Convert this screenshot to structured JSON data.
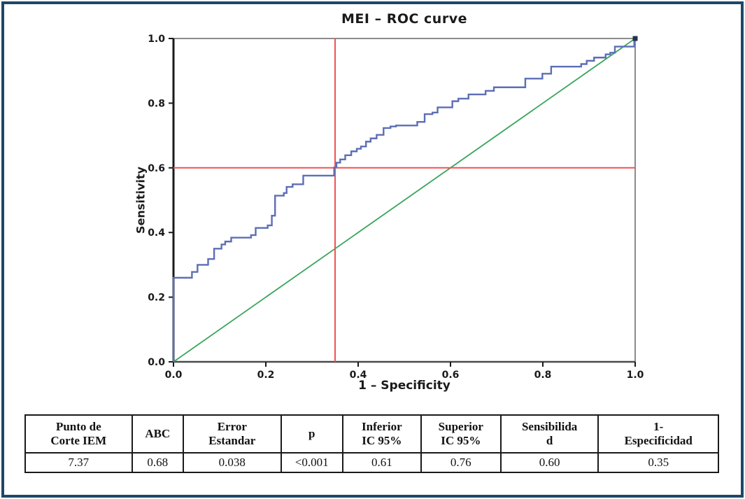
{
  "figure": {
    "border_color": "#1d4868",
    "background": "#ffffff"
  },
  "chart_data": {
    "type": "line",
    "title": "MEI – ROC curve",
    "xlabel": "1 – Specificity",
    "ylabel": "Sensitivity",
    "xlim": [
      0.0,
      1.0
    ],
    "ylim": [
      0.0,
      1.0
    ],
    "xticks": [
      0.0,
      0.2,
      0.4,
      0.6,
      0.8,
      1.0
    ],
    "yticks": [
      0.0,
      0.2,
      0.4,
      0.6,
      0.8,
      1.0
    ],
    "grid": false,
    "legend": "none",
    "frame_colors": {
      "top": "#8c8c8c",
      "right": "#8c8c8c",
      "bottom": "#4a4a4a",
      "left": "#1a1a1a"
    },
    "series": [
      {
        "name": "MEI ROC curve",
        "type": "step",
        "color": "#5c6eb5",
        "points": [
          [
            0.0,
            0.0
          ],
          [
            0.0,
            0.26
          ],
          [
            0.04,
            0.26
          ],
          [
            0.04,
            0.278
          ],
          [
            0.052,
            0.278
          ],
          [
            0.052,
            0.3
          ],
          [
            0.075,
            0.3
          ],
          [
            0.075,
            0.318
          ],
          [
            0.088,
            0.318
          ],
          [
            0.088,
            0.35
          ],
          [
            0.104,
            0.35
          ],
          [
            0.104,
            0.363
          ],
          [
            0.112,
            0.363
          ],
          [
            0.112,
            0.372
          ],
          [
            0.125,
            0.372
          ],
          [
            0.125,
            0.384
          ],
          [
            0.168,
            0.384
          ],
          [
            0.168,
            0.392
          ],
          [
            0.178,
            0.392
          ],
          [
            0.178,
            0.414
          ],
          [
            0.204,
            0.414
          ],
          [
            0.204,
            0.422
          ],
          [
            0.213,
            0.422
          ],
          [
            0.213,
            0.452
          ],
          [
            0.22,
            0.452
          ],
          [
            0.22,
            0.514
          ],
          [
            0.239,
            0.514
          ],
          [
            0.239,
            0.522
          ],
          [
            0.245,
            0.522
          ],
          [
            0.245,
            0.541
          ],
          [
            0.258,
            0.541
          ],
          [
            0.258,
            0.549
          ],
          [
            0.281,
            0.549
          ],
          [
            0.281,
            0.576
          ],
          [
            0.348,
            0.576
          ],
          [
            0.348,
            0.601
          ],
          [
            0.353,
            0.601
          ],
          [
            0.353,
            0.616
          ],
          [
            0.361,
            0.616
          ],
          [
            0.361,
            0.626
          ],
          [
            0.372,
            0.626
          ],
          [
            0.372,
            0.639
          ],
          [
            0.385,
            0.639
          ],
          [
            0.385,
            0.651
          ],
          [
            0.397,
            0.651
          ],
          [
            0.397,
            0.659
          ],
          [
            0.406,
            0.659
          ],
          [
            0.406,
            0.666
          ],
          [
            0.417,
            0.666
          ],
          [
            0.417,
            0.681
          ],
          [
            0.427,
            0.681
          ],
          [
            0.427,
            0.691
          ],
          [
            0.44,
            0.691
          ],
          [
            0.44,
            0.702
          ],
          [
            0.455,
            0.702
          ],
          [
            0.455,
            0.723
          ],
          [
            0.47,
            0.723
          ],
          [
            0.47,
            0.728
          ],
          [
            0.482,
            0.728
          ],
          [
            0.482,
            0.731
          ],
          [
            0.528,
            0.731
          ],
          [
            0.528,
            0.742
          ],
          [
            0.544,
            0.742
          ],
          [
            0.544,
            0.766
          ],
          [
            0.561,
            0.766
          ],
          [
            0.561,
            0.771
          ],
          [
            0.572,
            0.771
          ],
          [
            0.572,
            0.787
          ],
          [
            0.604,
            0.787
          ],
          [
            0.604,
            0.806
          ],
          [
            0.617,
            0.806
          ],
          [
            0.617,
            0.814
          ],
          [
            0.639,
            0.814
          ],
          [
            0.639,
            0.827
          ],
          [
            0.676,
            0.827
          ],
          [
            0.676,
            0.838
          ],
          [
            0.694,
            0.838
          ],
          [
            0.694,
            0.849
          ],
          [
            0.762,
            0.849
          ],
          [
            0.762,
            0.876
          ],
          [
            0.799,
            0.876
          ],
          [
            0.799,
            0.891
          ],
          [
            0.818,
            0.891
          ],
          [
            0.818,
            0.913
          ],
          [
            0.883,
            0.913
          ],
          [
            0.883,
            0.921
          ],
          [
            0.895,
            0.921
          ],
          [
            0.895,
            0.931
          ],
          [
            0.911,
            0.931
          ],
          [
            0.911,
            0.941
          ],
          [
            0.936,
            0.941
          ],
          [
            0.936,
            0.951
          ],
          [
            0.946,
            0.951
          ],
          [
            0.946,
            0.956
          ],
          [
            0.956,
            0.956
          ],
          [
            0.956,
            0.975
          ],
          [
            0.998,
            0.975
          ],
          [
            0.998,
            1.0
          ],
          [
            1.0,
            1.0
          ]
        ]
      },
      {
        "name": "reference diagonal",
        "type": "line",
        "color": "#3aa55c",
        "points": [
          [
            0.0,
            0.0
          ],
          [
            1.0,
            1.0
          ]
        ]
      }
    ],
    "crosshair": {
      "x": 0.35,
      "y": 0.6,
      "color": "#f25253"
    }
  },
  "table": {
    "headers": [
      "Punto de\nCorte IEM",
      "ABC",
      "Error\nEstandar",
      "p",
      "Inferior\nIC 95%",
      "Superior\nIC 95%",
      "Sensibilida\nd",
      "1-\nEspecificidad"
    ],
    "rows": [
      [
        "7.37",
        "0.68",
        "0.038",
        "<0.001",
        "0.61",
        "0.76",
        "0.60",
        "0.35"
      ]
    ]
  }
}
